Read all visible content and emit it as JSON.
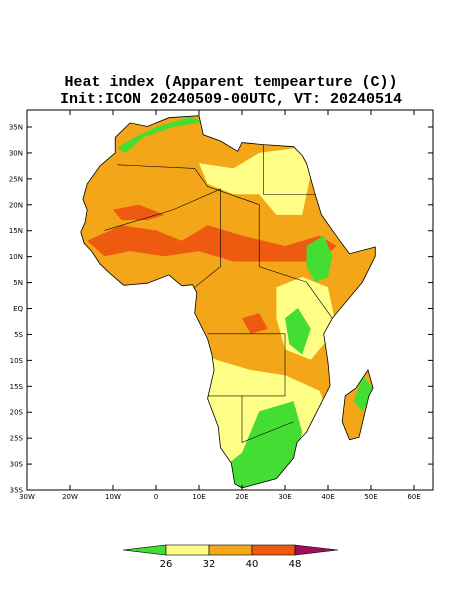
{
  "title": "Heat index (Apparent tempearture (C))",
  "subtitle": "Init:ICON 20240509-00UTC, VT: 20240514",
  "map": {
    "lat_labels": [
      "35N",
      "30N",
      "25N",
      "20N",
      "15N",
      "10N",
      "5N",
      "EQ",
      "5S",
      "10S",
      "15S",
      "20S",
      "25S",
      "30S",
      "35S"
    ],
    "lon_labels": [
      "30W",
      "20W",
      "10W",
      "0",
      "10E",
      "20E",
      "30E",
      "40E",
      "50E",
      "60E"
    ]
  },
  "colorbar": {
    "colors": [
      "#44dd33",
      "#ffff88",
      "#f2a618",
      "#ee5a10",
      "#a0105a"
    ],
    "ticks": [
      26,
      32,
      40,
      48
    ]
  }
}
